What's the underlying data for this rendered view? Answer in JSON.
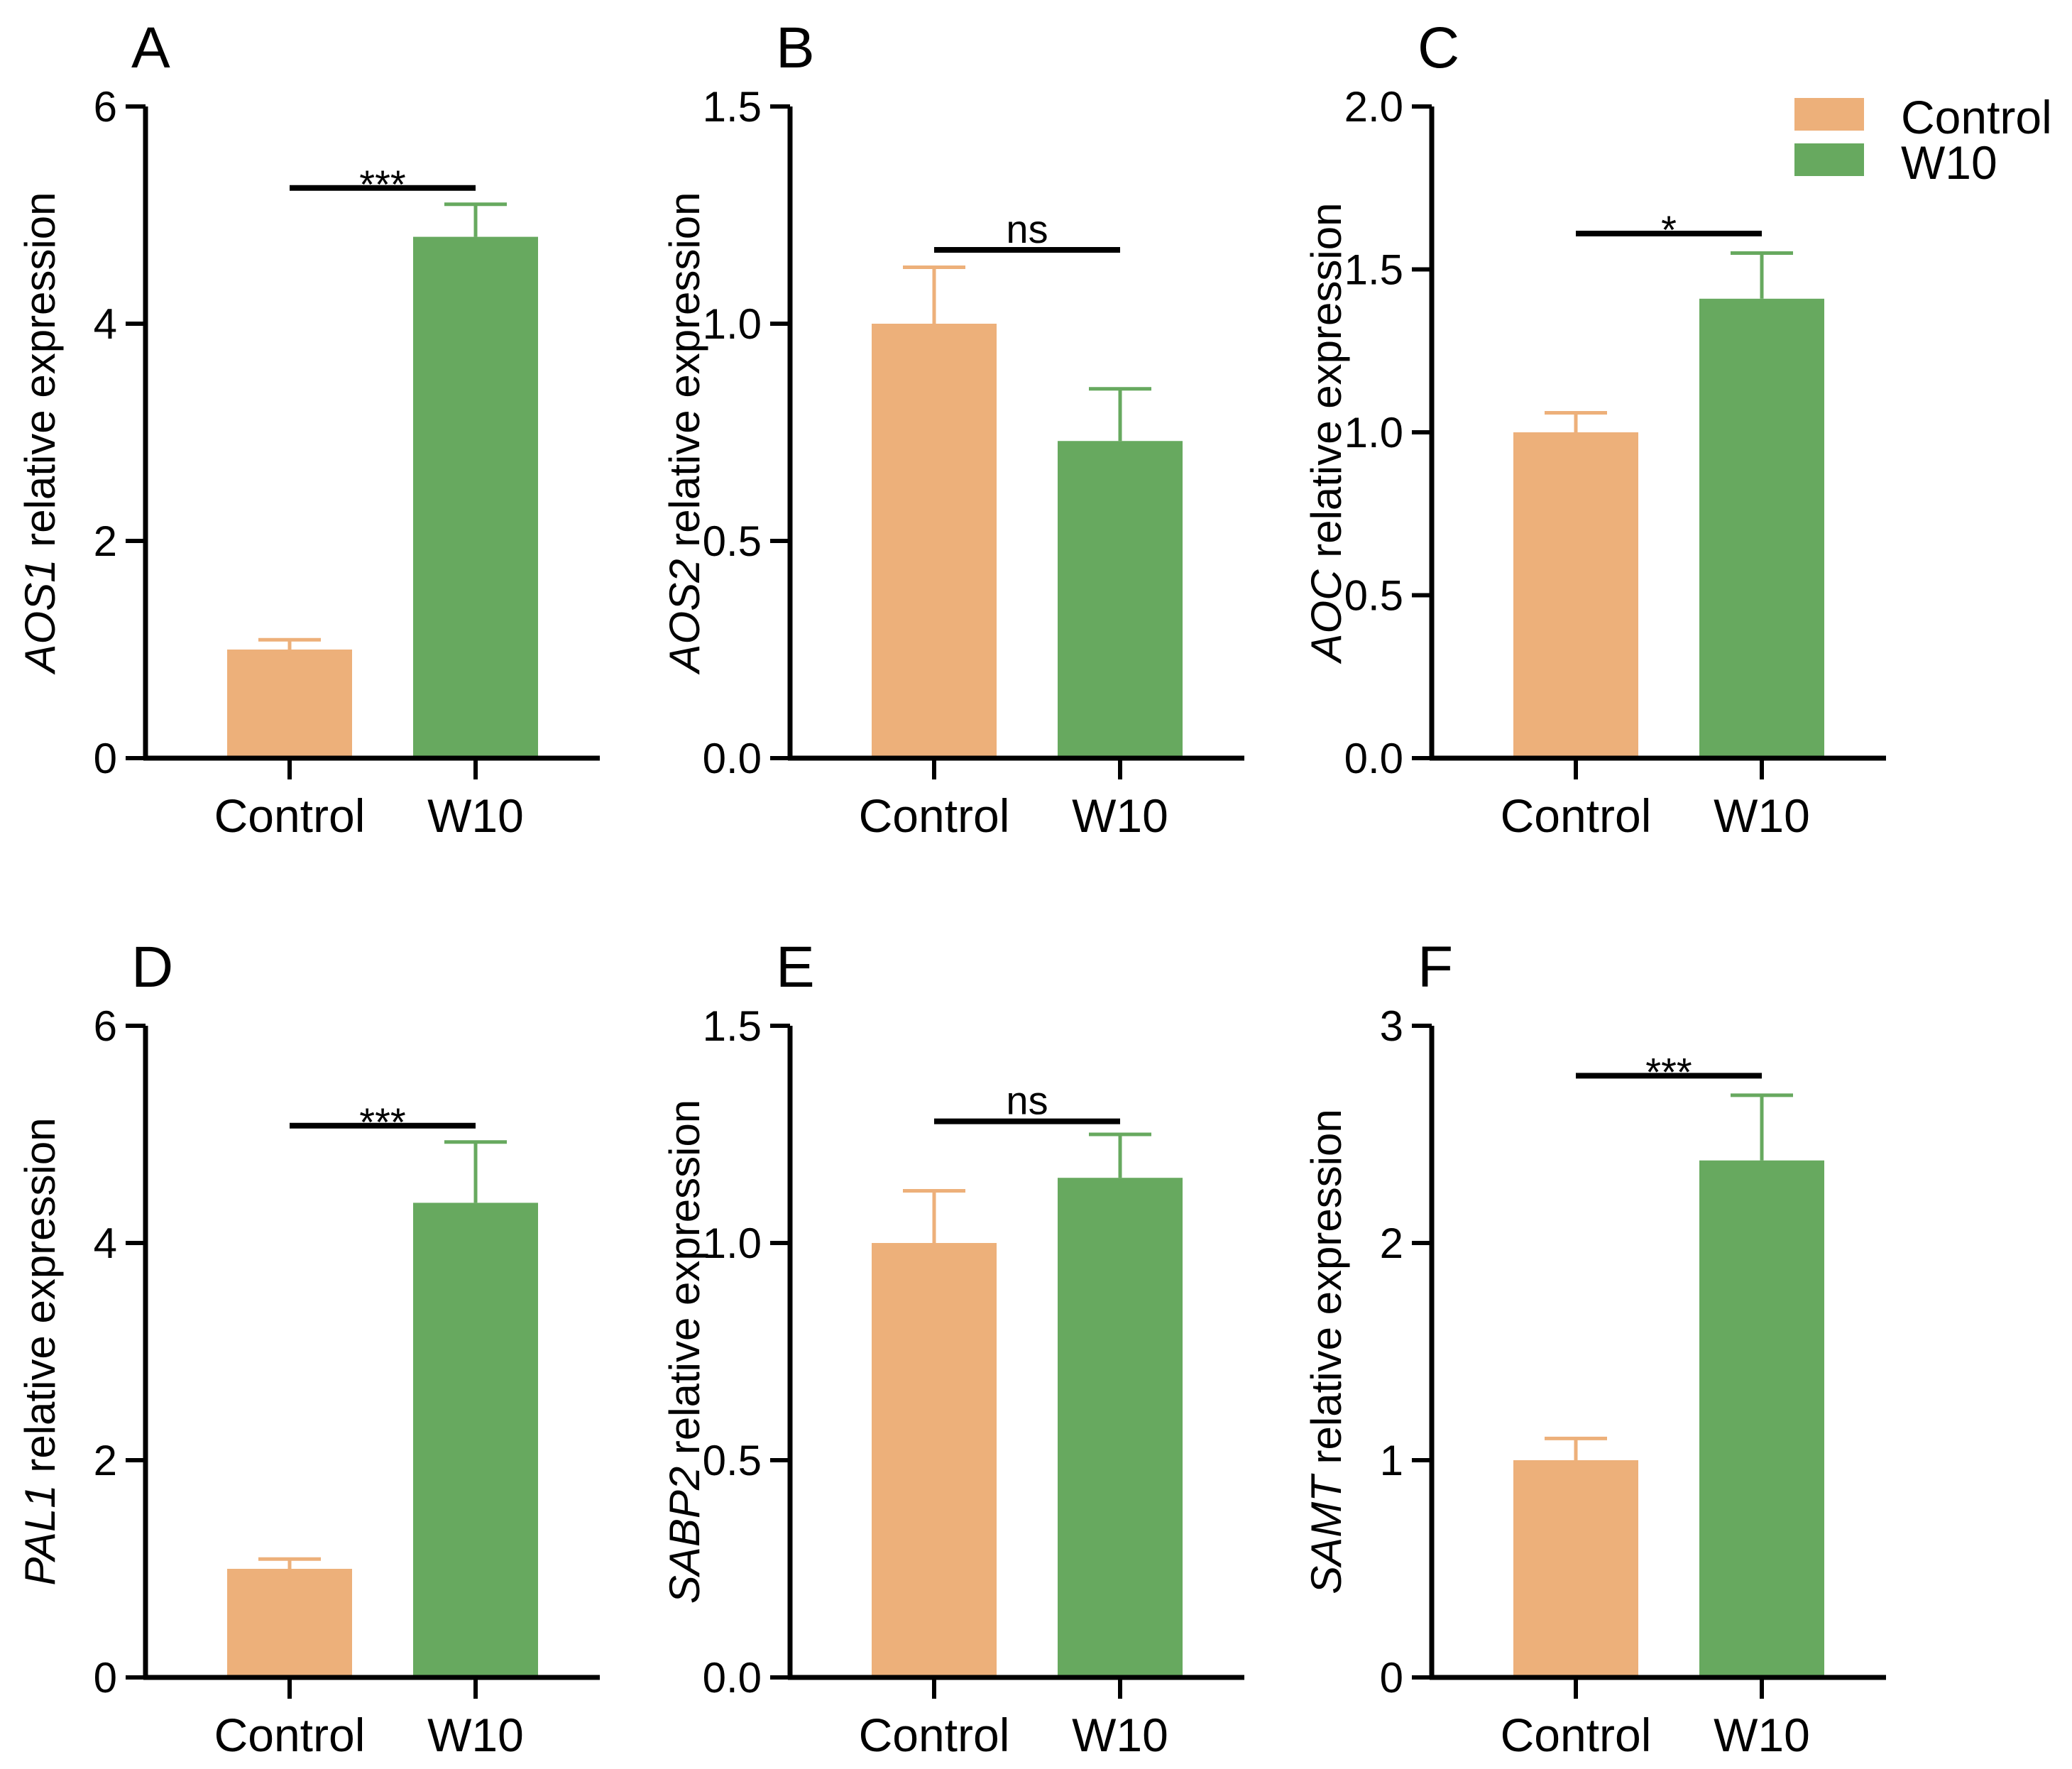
{
  "colors": {
    "control": "#EDB07A",
    "w10": "#67A95F",
    "axis": "#000000"
  },
  "legend": {
    "position": "top-right",
    "items": [
      {
        "label": "Control",
        "color": "#EDB07A"
      },
      {
        "label": "W10",
        "color": "#67A95F"
      }
    ]
  },
  "chart_data": [
    {
      "type": "bar",
      "panel": "A",
      "gene": "AOS1",
      "ylabel_suffix": " relative expression",
      "categories": [
        "Control",
        "W10"
      ],
      "values": [
        1.0,
        4.8
      ],
      "errors": [
        0.09,
        0.3
      ],
      "ylim": [
        0,
        6
      ],
      "yticks": [
        0,
        2,
        4,
        6
      ],
      "tick_labels": [
        "0",
        "2",
        "4",
        "6"
      ],
      "significance": "***",
      "sig_y": 5.25
    },
    {
      "type": "bar",
      "panel": "B",
      "gene": "AOS2",
      "ylabel_suffix": " relative expression",
      "categories": [
        "Control",
        "W10"
      ],
      "values": [
        1.0,
        0.73
      ],
      "errors": [
        0.13,
        0.12
      ],
      "ylim": [
        0,
        1.5
      ],
      "yticks": [
        0,
        0.5,
        1.0,
        1.5
      ],
      "tick_labels": [
        "0.0",
        "0.5",
        "1.0",
        "1.5"
      ],
      "significance": "ns",
      "sig_y": 1.17
    },
    {
      "type": "bar",
      "panel": "C",
      "gene": "AOC",
      "ylabel_suffix": "  relative  expression",
      "categories": [
        "Control",
        "W10"
      ],
      "values": [
        1.0,
        1.41
      ],
      "errors": [
        0.06,
        0.14
      ],
      "ylim": [
        0,
        2.0
      ],
      "yticks": [
        0,
        0.5,
        1.0,
        1.5,
        2.0
      ],
      "tick_labels": [
        "0.0",
        "0.5",
        "1.0",
        "1.5",
        "2.0"
      ],
      "significance": "*",
      "sig_y": 1.61
    },
    {
      "type": "bar",
      "panel": "D",
      "gene": "PAL1",
      "ylabel_suffix": " relative expression",
      "categories": [
        "Control",
        "W10"
      ],
      "values": [
        1.0,
        4.37
      ],
      "errors": [
        0.09,
        0.56
      ],
      "ylim": [
        0,
        6
      ],
      "yticks": [
        0,
        2,
        4,
        6
      ],
      "tick_labels": [
        "0",
        "2",
        "4",
        "6"
      ],
      "significance": "***",
      "sig_y": 5.08
    },
    {
      "type": "bar",
      "panel": "E",
      "gene": "SABP2",
      "ylabel_suffix": " relative expression",
      "categories": [
        "Control",
        "W10"
      ],
      "values": [
        1.0,
        1.15
      ],
      "errors": [
        0.12,
        0.1
      ],
      "ylim": [
        0,
        1.5
      ],
      "yticks": [
        0,
        0.5,
        1.0,
        1.5
      ],
      "tick_labels": [
        "0.0",
        "0.5",
        "1.0",
        "1.5"
      ],
      "significance": "ns",
      "sig_y": 1.28
    },
    {
      "type": "bar",
      "panel": "F",
      "gene": "SAMT",
      "ylabel_suffix": " relative expression",
      "categories": [
        "Control",
        "W10"
      ],
      "values": [
        1.0,
        2.38
      ],
      "errors": [
        0.1,
        0.3
      ],
      "ylim": [
        0,
        3
      ],
      "yticks": [
        0,
        1,
        2,
        3
      ],
      "tick_labels": [
        "0",
        "1",
        "2",
        "3"
      ],
      "significance": "***",
      "sig_y": 2.77
    }
  ]
}
